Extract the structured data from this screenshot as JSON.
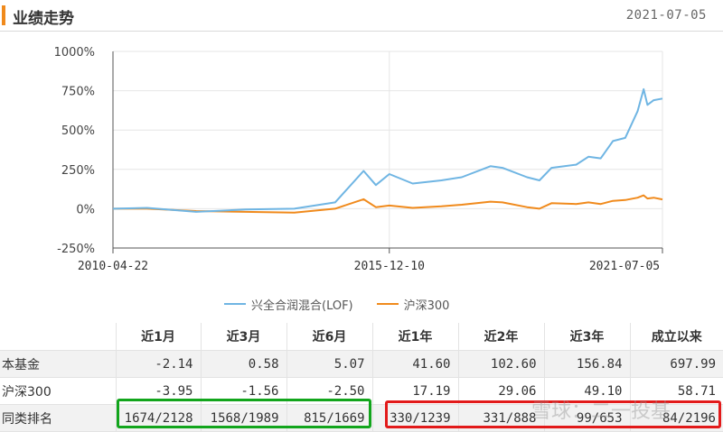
{
  "header": {
    "title": "业绩走势",
    "date": "2021-07-05"
  },
  "chart_data": {
    "type": "line",
    "y_ticks": [
      "1000%",
      "750%",
      "500%",
      "250%",
      "0%",
      "-250%"
    ],
    "y_tick_values": [
      1000,
      750,
      500,
      250,
      0,
      -250
    ],
    "ylim": [
      -250,
      1000
    ],
    "x_ticks": [
      "2010-04-22",
      "2015-12-10",
      "2021-07-05"
    ],
    "xlim": [
      "2010-04-22",
      "2021-07-05"
    ],
    "grid": true,
    "legend_position": "bottom",
    "series": [
      {
        "name": "兴全合润混合(LOF)",
        "color": "#6fb5e3",
        "x": [
          "2010-04-22",
          "2011-01-01",
          "2012-01-01",
          "2013-01-01",
          "2014-01-01",
          "2014-11-01",
          "2015-06-01",
          "2015-09-01",
          "2015-12-10",
          "2016-06-01",
          "2017-01-01",
          "2017-06-01",
          "2018-01-01",
          "2018-04-01",
          "2018-10-01",
          "2019-01-01",
          "2019-04-01",
          "2019-10-01",
          "2020-01-01",
          "2020-04-01",
          "2020-07-01",
          "2020-10-01",
          "2021-01-01",
          "2021-02-15",
          "2021-03-15",
          "2021-05-01",
          "2021-07-05"
        ],
        "values": [
          0,
          5,
          -20,
          -5,
          0,
          40,
          240,
          150,
          220,
          160,
          180,
          200,
          270,
          260,
          200,
          180,
          260,
          280,
          330,
          320,
          430,
          450,
          620,
          760,
          660,
          690,
          700
        ]
      },
      {
        "name": "沪深300",
        "color": "#f08a1c",
        "x": [
          "2010-04-22",
          "2011-01-01",
          "2012-01-01",
          "2013-01-01",
          "2014-01-01",
          "2014-11-01",
          "2015-06-01",
          "2015-09-01",
          "2015-12-10",
          "2016-06-01",
          "2017-01-01",
          "2017-06-01",
          "2018-01-01",
          "2018-04-01",
          "2018-10-01",
          "2019-01-01",
          "2019-04-01",
          "2019-10-01",
          "2020-01-01",
          "2020-04-01",
          "2020-07-01",
          "2020-10-01",
          "2021-01-01",
          "2021-02-15",
          "2021-03-15",
          "2021-05-01",
          "2021-07-05"
        ],
        "values": [
          0,
          0,
          -15,
          -20,
          -25,
          0,
          60,
          10,
          20,
          5,
          15,
          25,
          45,
          40,
          10,
          0,
          35,
          30,
          40,
          30,
          50,
          55,
          70,
          85,
          65,
          70,
          59
        ]
      }
    ]
  },
  "table": {
    "headers": [
      "",
      "近1月",
      "近3月",
      "近6月",
      "近1年",
      "近2年",
      "近3年",
      "成立以来"
    ],
    "rows": [
      {
        "label": "本基金",
        "values": [
          "-2.14",
          "0.58",
          "5.07",
          "41.60",
          "102.60",
          "156.84",
          "697.99"
        ]
      },
      {
        "label": "沪深300",
        "values": [
          "-3.95",
          "-1.56",
          "-2.50",
          "17.19",
          "29.06",
          "49.10",
          "58.71"
        ]
      },
      {
        "label": "同类排名",
        "values": [
          "1674/2128",
          "1568/1989",
          "815/1669",
          "330/1239",
          "331/888",
          "99/653",
          "84/2196"
        ]
      }
    ]
  },
  "watermark": "雪球：二一投基"
}
